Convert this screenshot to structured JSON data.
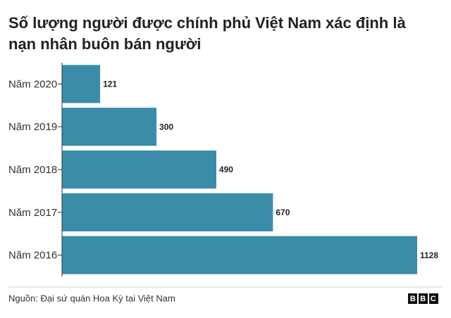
{
  "chart_data": {
    "type": "bar",
    "orientation": "horizontal",
    "title": "Số lượng người được chính phủ Việt Nam xác định là nạn nhân buôn bán người",
    "categories": [
      "Năm 2020",
      "Năm 2019",
      "Năm 2018",
      "Năm 2017",
      "Năm 2016"
    ],
    "values": [
      121,
      300,
      490,
      670,
      1128
    ],
    "color": "#3a8ca8",
    "source": "Nguồn: Đại sứ quán Hoa Kỳ tại Việt Nam",
    "brand": "BBC"
  }
}
